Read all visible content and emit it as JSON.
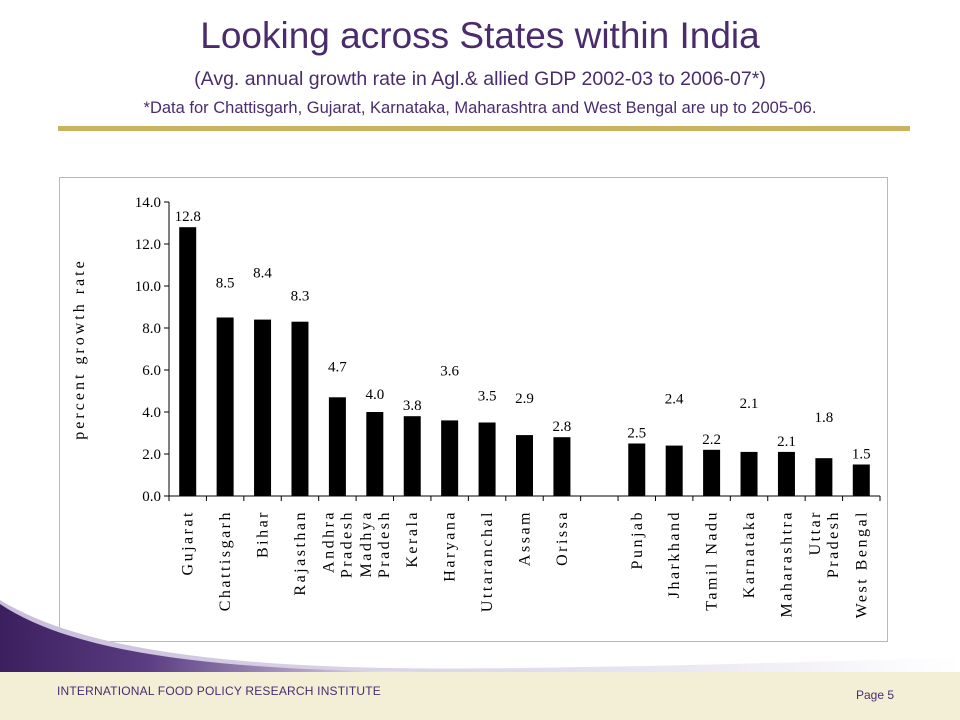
{
  "slide": {
    "title": "Looking across States within India",
    "subtitle": "(Avg. annual growth rate in Agl.& allied GDP 2002-03 to 2006-07*)",
    "footnote": "*Data for Chattisgarh, Gujarat, Karnataka, Maharashtra and West Bengal are up to 2005-06.",
    "footer_org": "INTERNATIONAL  FOOD POLICY  RESEARCH INSTITUTE",
    "page_label": "Page 5",
    "colors": {
      "title": "#4a2c6d",
      "rule": "#c9b35e",
      "footer_bg": "#f3efd7",
      "swoosh": "#4a2c6d"
    }
  },
  "chart_data": {
    "type": "bar",
    "title": "",
    "xlabel": "",
    "ylabel": "percent growth rate",
    "ylim": [
      0,
      14
    ],
    "yticks": [
      "0.0",
      "2.0",
      "4.0",
      "6.0",
      "8.0",
      "10.0",
      "12.0",
      "14.0"
    ],
    "grid": false,
    "bar_color": "#000000",
    "categories": [
      [
        "Gujarat"
      ],
      [
        "Chattisgarh"
      ],
      [
        "Bihar"
      ],
      [
        "Rajasthan"
      ],
      [
        "Andhra",
        "Pradesh"
      ],
      [
        "Madhya",
        "Pradesh"
      ],
      [
        "Kerala"
      ],
      [
        "Haryana"
      ],
      [
        "Uttaranchal"
      ],
      [
        "Assam"
      ],
      [
        "Orissa"
      ],
      [],
      [
        "Punjab"
      ],
      [
        "Jharkhand"
      ],
      [
        "Tamil Nadu"
      ],
      [
        "Karnataka"
      ],
      [
        "Maharashtra"
      ],
      [
        "Uttar",
        "Pradesh"
      ],
      [
        "West Bengal"
      ]
    ],
    "values": [
      12.8,
      8.5,
      8.4,
      8.3,
      4.7,
      4.0,
      3.8,
      3.6,
      3.5,
      2.9,
      2.8,
      null,
      2.5,
      2.4,
      2.2,
      2.1,
      2.1,
      1.8,
      1.5
    ],
    "labels": [
      "12.8",
      "8.5",
      "8.4",
      "8.3",
      "4.7",
      "4.0",
      "3.8",
      "3.6",
      "3.5",
      "2.9",
      "2.8",
      "",
      "2.5",
      "2.4",
      "2.2",
      "2.1",
      "2.1",
      "1.8",
      "1.5"
    ]
  }
}
